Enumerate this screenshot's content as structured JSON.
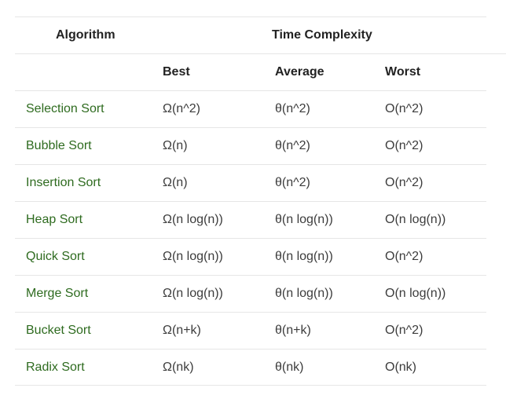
{
  "header": {
    "algorithm_label": "Algorithm",
    "time_complexity_label": "Time Complexity"
  },
  "subheader": {
    "best_label": "Best",
    "average_label": "Average",
    "worst_label": "Worst"
  },
  "rows": [
    {
      "name": "Selection Sort",
      "best": "Ω(n^2)",
      "average": "θ(n^2)",
      "worst": "O(n^2)"
    },
    {
      "name": "Bubble Sort",
      "best": "Ω(n)",
      "average": "θ(n^2)",
      "worst": "O(n^2)"
    },
    {
      "name": "Insertion Sort",
      "best": "Ω(n)",
      "average": "θ(n^2)",
      "worst": "O(n^2)"
    },
    {
      "name": "Heap Sort",
      "best": "Ω(n log(n))",
      "average": "θ(n log(n))",
      "worst": "O(n log(n))"
    },
    {
      "name": "Quick Sort",
      "best": "Ω(n log(n))",
      "average": "θ(n log(n))",
      "worst": "O(n^2)"
    },
    {
      "name": "Merge Sort",
      "best": "Ω(n log(n))",
      "average": "θ(n log(n))",
      "worst": "O(n log(n))"
    },
    {
      "name": "Bucket Sort",
      "best": "Ω(n+k)",
      "average": "θ(n+k)",
      "worst": "O(n^2)"
    },
    {
      "name": "Radix Sort",
      "best": "Ω(nk)",
      "average": "θ(nk)",
      "worst": "O(nk)"
    }
  ],
  "colors": {
    "algorithm_name": "#2e6b1f",
    "header_text": "#222222",
    "value_text": "#3c3c3c",
    "divider": "#e6e6e6"
  }
}
